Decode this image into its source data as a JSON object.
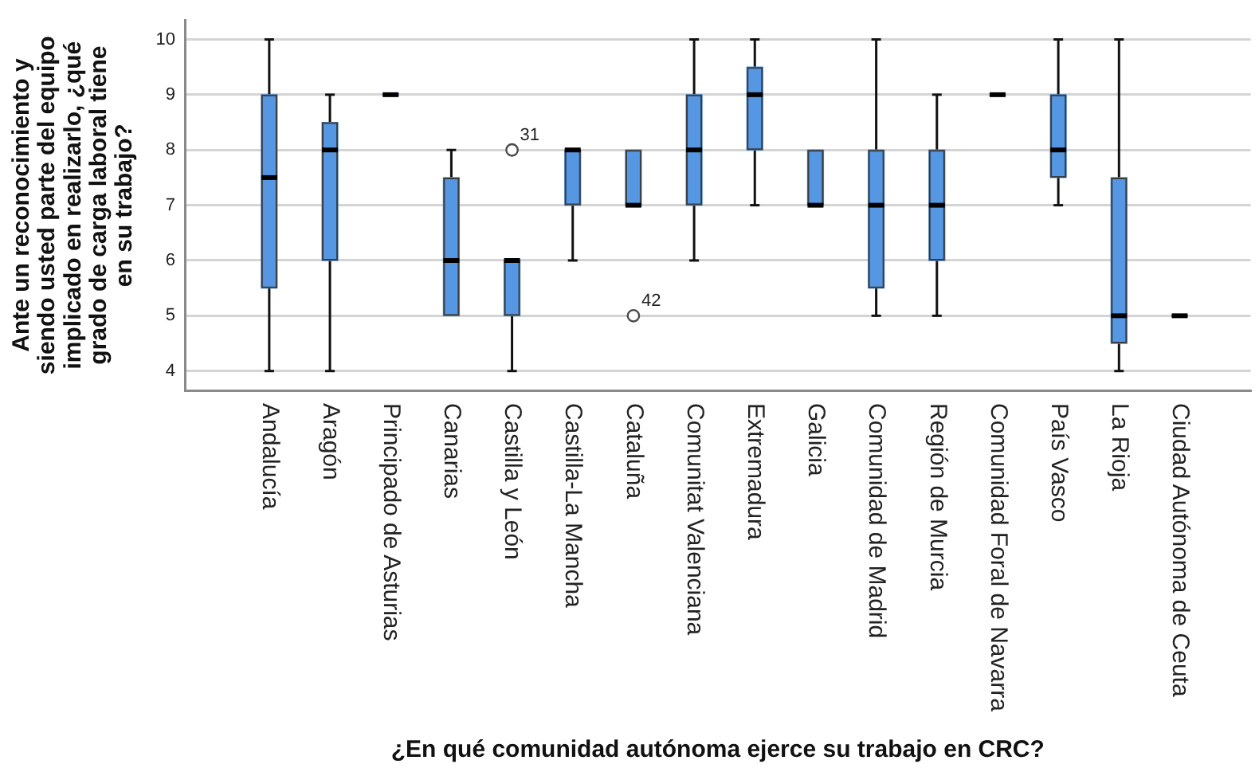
{
  "chart_data": {
    "type": "box",
    "xlabel": "¿En qué comunidad autónoma ejerce su trabajo en CRC?",
    "ylabel": "Ante un reconocimiento y siendo usted parte del equipo implicado en realizarlo, ¿qué grado de carga laboral tiene en su trabajo?",
    "categories": [
      "Andalucía",
      "Aragón",
      "Principado de Asturias",
      "Canarias",
      "Castilla y León",
      "Castilla-La Mancha",
      "Cataluña",
      "Comunitat Valenciana",
      "Extremadura",
      "Galicia",
      "Comunidad de Madrid",
      "Región de Murcia",
      "Comunidad Foral de Navarra",
      "País Vasco",
      "La Rioja",
      "Ciudad Autónoma de Ceuta"
    ],
    "boxes": [
      {
        "low": 4,
        "q1": 5.5,
        "median": 7.5,
        "q3": 9,
        "high": 10
      },
      {
        "low": 4,
        "q1": 6,
        "median": 8,
        "q3": 8.5,
        "high": 9
      },
      {
        "low": 9,
        "q1": 9,
        "median": 9,
        "q3": 9,
        "high": 9
      },
      {
        "low": 5,
        "q1": 5,
        "median": 6,
        "q3": 7.5,
        "high": 8
      },
      {
        "low": 4,
        "q1": 5,
        "median": 6,
        "q3": 6,
        "high": 6
      },
      {
        "low": 6,
        "q1": 7,
        "median": 8,
        "q3": 8,
        "high": 8
      },
      {
        "low": 7,
        "q1": 7,
        "median": 7,
        "q3": 8,
        "high": 8
      },
      {
        "low": 6,
        "q1": 7,
        "median": 8,
        "q3": 9,
        "high": 10
      },
      {
        "low": 7,
        "q1": 8,
        "median": 9,
        "q3": 9.5,
        "high": 10
      },
      {
        "low": 7,
        "q1": 7,
        "median": 7,
        "q3": 8,
        "high": 8
      },
      {
        "low": 5,
        "q1": 5.5,
        "median": 7,
        "q3": 8,
        "high": 10
      },
      {
        "low": 5,
        "q1": 6,
        "median": 7,
        "q3": 8,
        "high": 9
      },
      {
        "low": 9,
        "q1": 9,
        "median": 9,
        "q3": 9,
        "high": 9
      },
      {
        "low": 7,
        "q1": 7.5,
        "median": 8,
        "q3": 9,
        "high": 10
      },
      {
        "low": 4,
        "q1": 4.5,
        "median": 5,
        "q3": 7.5,
        "high": 10
      },
      {
        "low": 5,
        "q1": 5,
        "median": 5,
        "q3": 5,
        "high": 5
      }
    ],
    "color": "#5597e3",
    "series": [
      {
        "type": "scatter",
        "x": [
          "Castilla y León",
          "Cataluña"
        ],
        "values": [
          8,
          5
        ],
        "color": "#4a4a4a",
        "marker": "circle"
      }
    ],
    "ylim": [
      3.65,
      10.35
    ],
    "yticks": [
      4,
      5,
      6,
      7,
      8,
      9,
      10
    ],
    "grid": "y",
    "annotations": [
      {
        "text": "31",
        "x": "Castilla y León",
        "y": 8
      },
      {
        "text": "42",
        "x": "Cataluña",
        "y": 5
      }
    ]
  }
}
